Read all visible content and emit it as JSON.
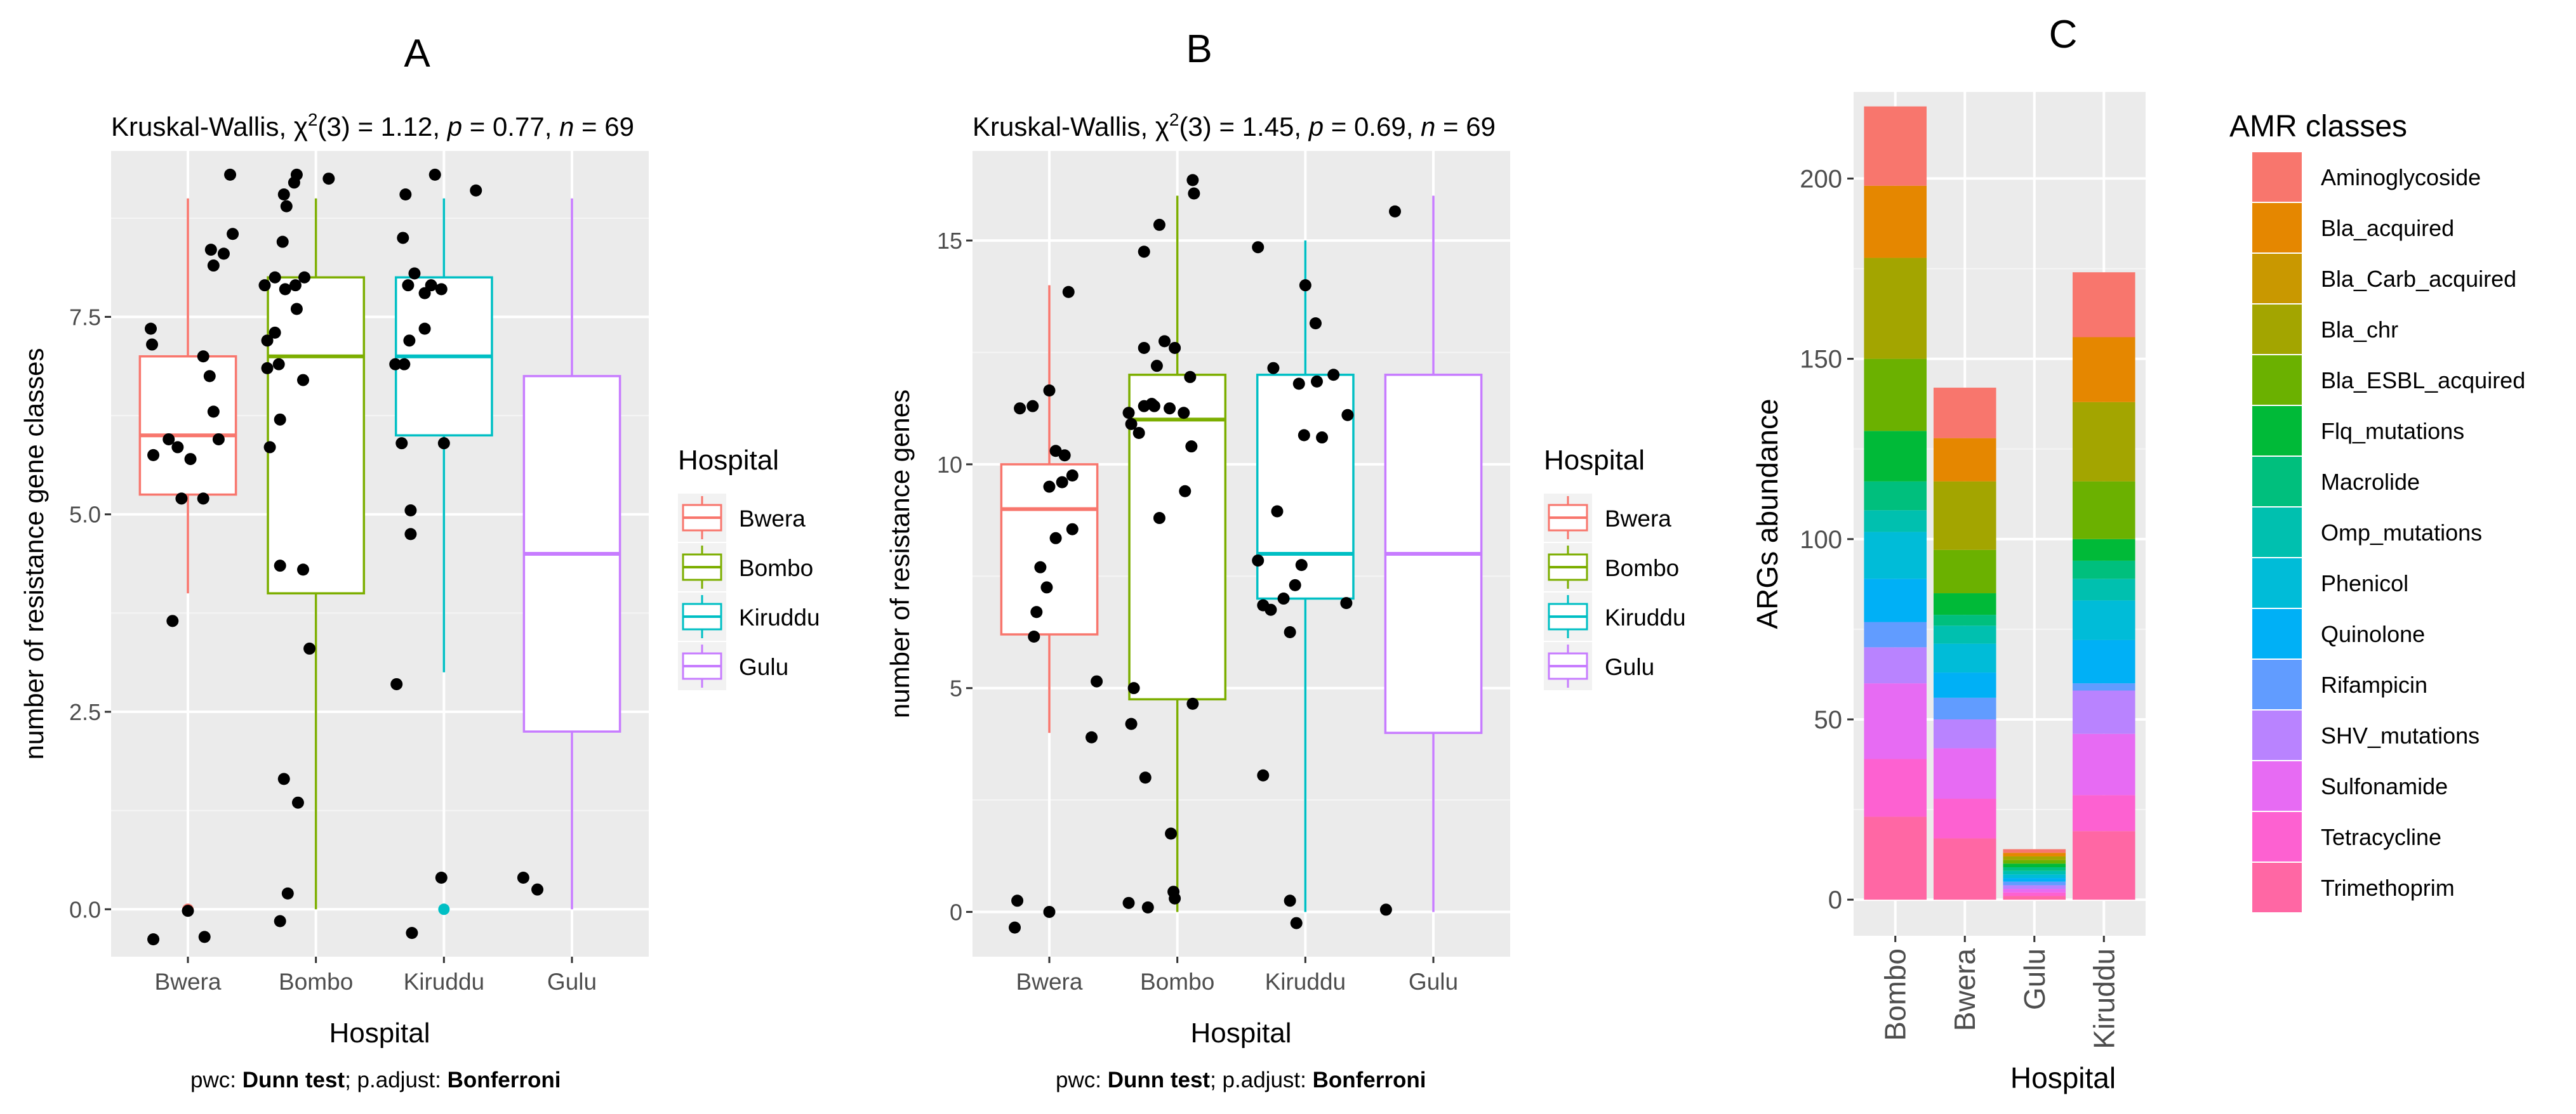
{
  "colors": {
    "panel_bg": "#ebebeb",
    "grid_major": "#ffffff",
    "points": "#000000",
    "hospital": {
      "Bwera": "#F8766D",
      "Bombo": "#7CAE00",
      "Kiruddu": "#00BFC4",
      "Gulu": "#C77CFF"
    },
    "amr": [
      "#F8766D",
      "#E58700",
      "#C99800",
      "#A3A500",
      "#6BB100",
      "#00BA38",
      "#00BF7D",
      "#00C0AF",
      "#00BCD8",
      "#00B0F6",
      "#619CFF",
      "#B983FF",
      "#E76BF3",
      "#FD61D1",
      "#FF67A4"
    ]
  },
  "chart_data": [
    {
      "panel": "A",
      "type": "box",
      "subtitle_prefix": "Kruskal-Wallis, ",
      "subtitle_stat": "χ",
      "subtitle_sup": "2",
      "subtitle_df": "(3) = 1.12, ",
      "subtitle_p_label": "p",
      "subtitle_p_value": " = 0.77, ",
      "subtitle_n_label": "n",
      "subtitle_n_value": " = 69",
      "xlabel": "Hospital",
      "ylabel": "number of resistance gene classes",
      "ylim": [
        -0.6,
        9.6
      ],
      "yticks": [
        0,
        2.5,
        5,
        7.5
      ],
      "ytick_labels": [
        "0.0",
        "2.5",
        "5.0",
        "7.5"
      ],
      "categories": [
        "Bwera",
        "Bombo",
        "Kiruddu",
        "Gulu"
      ],
      "boxes": [
        {
          "name": "Bwera",
          "min": 4.0,
          "q1": 5.25,
          "median": 6.0,
          "q3": 7.0,
          "max": 9.0,
          "outliers": [
            0
          ]
        },
        {
          "name": "Bombo",
          "min": 0.0,
          "q1": 4.0,
          "median": 7.0,
          "q3": 8.0,
          "max": 9.0,
          "outliers": []
        },
        {
          "name": "Kiruddu",
          "min": 3.0,
          "q1": 6.0,
          "median": 7.0,
          "q3": 8.0,
          "max": 9.0,
          "outliers": [
            0
          ]
        },
        {
          "name": "Gulu",
          "min": 0.0,
          "q1": 2.25,
          "median": 4.5,
          "q3": 6.75,
          "max": 9.0,
          "outliers": []
        }
      ],
      "points": [
        [
          0.73,
          -0.38
        ],
        [
          1.0,
          -0.02
        ],
        [
          1.13,
          -0.35
        ],
        [
          0.88,
          3.65
        ],
        [
          1.12,
          5.2
        ],
        [
          0.95,
          5.2
        ],
        [
          1.02,
          5.7
        ],
        [
          0.73,
          5.75
        ],
        [
          0.85,
          5.95
        ],
        [
          0.92,
          5.85
        ],
        [
          1.24,
          5.95
        ],
        [
          1.2,
          6.3
        ],
        [
          1.17,
          6.75
        ],
        [
          0.72,
          7.15
        ],
        [
          1.12,
          7.0
        ],
        [
          0.71,
          7.35
        ],
        [
          1.2,
          8.15
        ],
        [
          1.18,
          8.35
        ],
        [
          1.28,
          8.3
        ],
        [
          1.35,
          8.55
        ],
        [
          1.33,
          9.3
        ],
        [
          1.72,
          -0.15
        ],
        [
          1.78,
          0.2
        ],
        [
          1.86,
          1.35
        ],
        [
          1.75,
          1.65
        ],
        [
          1.95,
          3.3
        ],
        [
          1.9,
          4.3
        ],
        [
          1.72,
          4.35
        ],
        [
          1.64,
          5.85
        ],
        [
          1.72,
          6.2
        ],
        [
          1.62,
          6.85
        ],
        [
          1.71,
          6.9
        ],
        [
          1.9,
          6.7
        ],
        [
          1.62,
          7.2
        ],
        [
          1.68,
          7.3
        ],
        [
          1.85,
          7.6
        ],
        [
          1.76,
          7.85
        ],
        [
          1.84,
          7.9
        ],
        [
          1.91,
          8.0
        ],
        [
          1.68,
          8.0
        ],
        [
          1.74,
          8.45
        ],
        [
          1.77,
          8.9
        ],
        [
          1.75,
          9.05
        ],
        [
          1.83,
          9.2
        ],
        [
          1.85,
          9.3
        ],
        [
          2.1,
          9.25
        ],
        [
          2.63,
          2.85
        ],
        [
          2.75,
          -0.3
        ],
        [
          2.74,
          4.75
        ],
        [
          2.74,
          5.05
        ],
        [
          2.98,
          0.4
        ],
        [
          2.67,
          5.9
        ],
        [
          3.0,
          5.9
        ],
        [
          2.62,
          6.9
        ],
        [
          2.69,
          6.9
        ],
        [
          2.73,
          7.2
        ],
        [
          2.85,
          7.35
        ],
        [
          2.85,
          7.8
        ],
        [
          2.72,
          7.9
        ],
        [
          2.9,
          7.9
        ],
        [
          2.98,
          7.85
        ],
        [
          2.77,
          8.05
        ],
        [
          2.68,
          8.5
        ],
        [
          2.7,
          9.05
        ],
        [
          2.93,
          9.3
        ],
        [
          3.25,
          9.1
        ],
        [
          3.73,
          0.25
        ],
        [
          3.62,
          0.4
        ],
        [
          1.6,
          7.9
        ]
      ]
    },
    {
      "panel": "B",
      "type": "box",
      "subtitle_prefix": "Kruskal-Wallis, ",
      "subtitle_stat": "χ",
      "subtitle_sup": "2",
      "subtitle_df": "(3) = 1.45, ",
      "subtitle_p_label": "p",
      "subtitle_p_value": " = 0.69, ",
      "subtitle_n_label": "n",
      "subtitle_n_value": " = 69",
      "xlabel": "Hospital",
      "ylabel": "number of resistance genes",
      "ylim": [
        -1.0,
        17.0
      ],
      "yticks": [
        0,
        5,
        10,
        15
      ],
      "ytick_labels": [
        "0",
        "5",
        "10",
        "15"
      ],
      "categories": [
        "Bwera",
        "Bombo",
        "Kiruddu",
        "Gulu"
      ],
      "boxes": [
        {
          "name": "Bwera",
          "min": 4.0,
          "q1": 6.2,
          "median": 9.0,
          "q3": 10.0,
          "max": 14.0,
          "outliers": [
            0
          ]
        },
        {
          "name": "Bombo",
          "min": 0.0,
          "q1": 4.75,
          "median": 11.0,
          "q3": 12.0,
          "max": 16.0,
          "outliers": []
        },
        {
          "name": "Kiruddu",
          "min": 0.0,
          "q1": 7.0,
          "median": 8.0,
          "q3": 12.0,
          "max": 15.0,
          "outliers": []
        },
        {
          "name": "Gulu",
          "min": 0.0,
          "q1": 4.0,
          "median": 8.0,
          "q3": 12.0,
          "max": 16.0,
          "outliers": []
        }
      ],
      "points": [
        [
          0.73,
          -0.35
        ],
        [
          0.75,
          0.25
        ],
        [
          1.0,
          0.0
        ],
        [
          1.33,
          3.9
        ],
        [
          1.37,
          5.15
        ],
        [
          0.88,
          6.15
        ],
        [
          0.9,
          6.7
        ],
        [
          0.98,
          7.25
        ],
        [
          0.93,
          7.7
        ],
        [
          1.05,
          8.35
        ],
        [
          1.18,
          8.55
        ],
        [
          1.0,
          9.5
        ],
        [
          1.1,
          9.6
        ],
        [
          1.18,
          9.75
        ],
        [
          1.05,
          10.3
        ],
        [
          1.12,
          10.2
        ],
        [
          0.77,
          11.25
        ],
        [
          0.87,
          11.3
        ],
        [
          1.0,
          11.65
        ],
        [
          1.15,
          13.85
        ],
        [
          1.62,
          0.2
        ],
        [
          1.77,
          0.1
        ],
        [
          1.98,
          0.3
        ],
        [
          1.97,
          0.45
        ],
        [
          1.95,
          1.75
        ],
        [
          1.75,
          3.0
        ],
        [
          2.12,
          4.65
        ],
        [
          1.64,
          4.2
        ],
        [
          1.66,
          5.0
        ],
        [
          1.86,
          8.8
        ],
        [
          1.64,
          10.9
        ],
        [
          1.7,
          10.7
        ],
        [
          1.62,
          11.15
        ],
        [
          1.74,
          11.3
        ],
        [
          1.8,
          11.35
        ],
        [
          1.82,
          11.3
        ],
        [
          1.94,
          11.25
        ],
        [
          2.05,
          11.15
        ],
        [
          2.11,
          10.4
        ],
        [
          2.06,
          9.4
        ],
        [
          1.74,
          12.6
        ],
        [
          1.84,
          12.2
        ],
        [
          1.9,
          12.75
        ],
        [
          1.98,
          12.6
        ],
        [
          2.1,
          11.95
        ],
        [
          1.74,
          14.75
        ],
        [
          1.86,
          15.35
        ],
        [
          2.13,
          16.05
        ],
        [
          2.12,
          16.35
        ],
        [
          2.67,
          3.05
        ],
        [
          2.88,
          0.25
        ],
        [
          2.93,
          -0.25
        ],
        [
          2.63,
          7.85
        ],
        [
          2.67,
          6.85
        ],
        [
          2.73,
          6.75
        ],
        [
          2.88,
          6.25
        ],
        [
          2.83,
          7.0
        ],
        [
          2.92,
          7.3
        ],
        [
          2.97,
          7.75
        ],
        [
          2.78,
          8.95
        ],
        [
          2.99,
          10.65
        ],
        [
          3.13,
          10.6
        ],
        [
          3.32,
          6.9
        ],
        [
          3.22,
          12.0
        ],
        [
          2.95,
          11.8
        ],
        [
          3.09,
          11.85
        ],
        [
          2.75,
          12.15
        ],
        [
          3.0,
          14.0
        ],
        [
          3.08,
          13.15
        ],
        [
          2.63,
          14.85
        ],
        [
          3.33,
          11.1
        ],
        [
          3.63,
          0.05
        ],
        [
          3.7,
          15.65
        ]
      ]
    },
    {
      "panel": "C",
      "type": "stacked-bar",
      "xlabel": "Hospital",
      "ylabel": "ARGs abundance",
      "ylim": [
        -10,
        224
      ],
      "yticks": [
        0,
        50,
        100,
        150,
        200
      ],
      "ytick_labels": [
        "0",
        "50",
        "100",
        "150",
        "200"
      ],
      "legend_title": "AMR classes",
      "legend_position": "right",
      "categories": [
        "Bombo",
        "Bwera",
        "Gulu",
        "Kiruddu"
      ],
      "classes": [
        "Aminoglycoside",
        "Bla_acquired",
        "Bla_Carb_acquired",
        "Bla_chr",
        "Bla_ESBL_acquired",
        "Flq_mutations",
        "Macrolide",
        "Omp_mutations",
        "Phenicol",
        "Quinolone",
        "Rifampicin",
        "SHV_mutations",
        "Sulfonamide",
        "Tetracycline",
        "Trimethoprim"
      ],
      "series": [
        {
          "name": "Aminoglycoside",
          "values": [
            22,
            14,
            1,
            18
          ]
        },
        {
          "name": "Bla_acquired",
          "values": [
            20,
            12,
            1,
            18
          ]
        },
        {
          "name": "Bla_Carb_acquired",
          "values": [
            0,
            0,
            0,
            0
          ]
        },
        {
          "name": "Bla_chr",
          "values": [
            28,
            19,
            1,
            22
          ]
        },
        {
          "name": "Bla_ESBL_acquired",
          "values": [
            20,
            12,
            1,
            16
          ]
        },
        {
          "name": "Flq_mutations",
          "values": [
            14,
            6,
            1,
            6
          ]
        },
        {
          "name": "Macrolide",
          "values": [
            8,
            3,
            1,
            5
          ]
        },
        {
          "name": "Omp_mutations",
          "values": [
            6,
            5,
            1,
            6
          ]
        },
        {
          "name": "Phenicol",
          "values": [
            13,
            8,
            1,
            11
          ]
        },
        {
          "name": "Quinolone",
          "values": [
            12,
            7,
            1,
            12
          ]
        },
        {
          "name": "Rifampicin",
          "values": [
            7,
            6,
            1,
            2
          ]
        },
        {
          "name": "SHV_mutations",
          "values": [
            10,
            8,
            1,
            12
          ]
        },
        {
          "name": "Sulfonamide",
          "values": [
            21,
            14,
            1,
            17
          ]
        },
        {
          "name": "Tetracycline",
          "values": [
            16,
            11,
            1,
            10
          ]
        },
        {
          "name": "Trimethoprim",
          "values": [
            23,
            17,
            1,
            19
          ]
        }
      ]
    }
  ],
  "panels": {
    "A": {
      "letter": "A",
      "legend_title": "Hospital",
      "legend": [
        "Bwera",
        "Bombo",
        "Kiruddu",
        "Gulu"
      ],
      "caption_prefix": "pwc: ",
      "caption_test": "Dunn test",
      "caption_mid": "; p.adjust: ",
      "caption_method": "Bonferroni"
    },
    "B": {
      "letter": "B",
      "legend_title": "Hospital",
      "legend": [
        "Bwera",
        "Bombo",
        "Kiruddu",
        "Gulu"
      ],
      "caption_prefix": "pwc: ",
      "caption_test": "Dunn test",
      "caption_mid": "; p.adjust: ",
      "caption_method": "Bonferroni"
    },
    "C": {
      "letter": "C"
    }
  }
}
